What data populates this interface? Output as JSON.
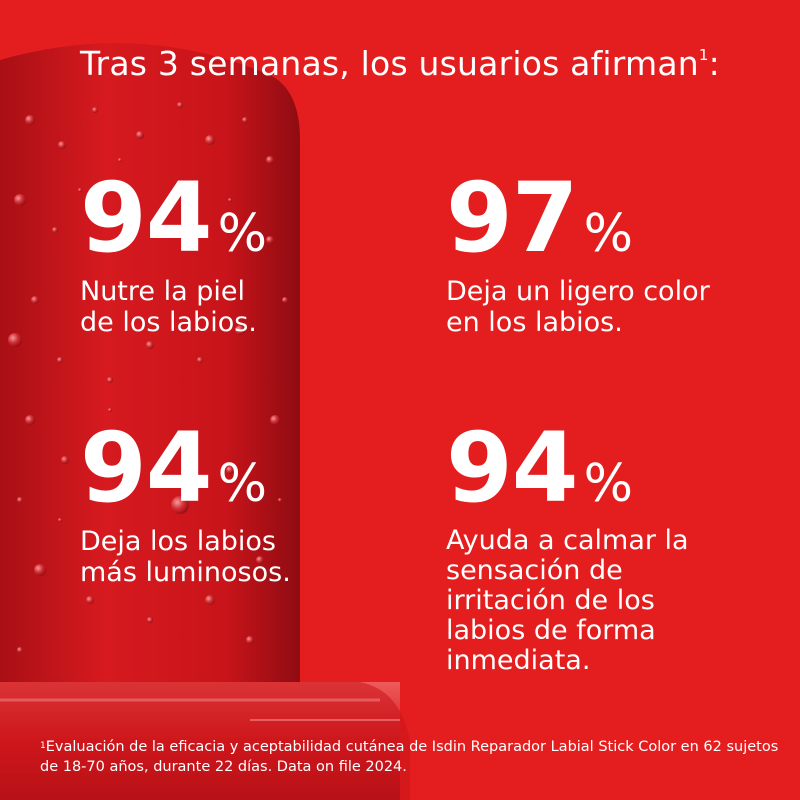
{
  "headline": {
    "text": "Tras 3 semanas, los usuarios afirman",
    "marker": "1",
    "suffix": ":"
  },
  "stats": [
    {
      "value": "94",
      "unit": "%",
      "description": "Nutre la piel\nde los labios."
    },
    {
      "value": "97",
      "unit": "%",
      "description": "Deja un ligero color\nen los labios."
    },
    {
      "value": "94",
      "unit": "%",
      "description": "Deja los labios\nmás luminosos."
    },
    {
      "value": "94",
      "unit": "%",
      "description": "Ayuda a calmar la\nsensación de\nirritación de los\nlabios de forma\ninmediata."
    }
  ],
  "footnote": {
    "marker": "1",
    "text": "Evaluación de la eficacia y aceptabilidad cutánea de Isdin Reparador Labial Stick Color en 62 sujetos de 18-70 años, durante 22 días. Data on file 2024."
  },
  "colors": {
    "background": "#e41e1e",
    "lipstick": "#c8141a",
    "text": "#ffffff"
  }
}
